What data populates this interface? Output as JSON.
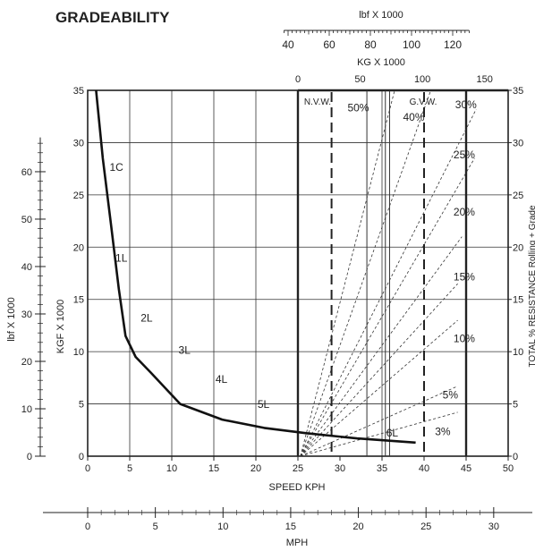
{
  "chart_data": {
    "type": "line",
    "title": "GRADEABILITY",
    "x_axis_primary": {
      "label": "SPEED KPH",
      "ticks": [
        "0",
        "5",
        "10",
        "15",
        "20",
        "25",
        "30",
        "35",
        "40",
        "45",
        "50"
      ],
      "range": [
        0,
        50
      ]
    },
    "x_axis_mph": {
      "label": "MPH",
      "ticks": [
        "0",
        "5",
        "10",
        "15",
        "20",
        "25",
        "30"
      ]
    },
    "y_axis_kgf": {
      "label": "KGF X 1000",
      "ticks": [
        "0",
        "5",
        "10",
        "15",
        "20",
        "25",
        "30",
        "35"
      ],
      "range": [
        0,
        35
      ]
    },
    "y_axis_lbf": {
      "label": "lbf X 1000",
      "ticks": [
        "0",
        "10",
        "20",
        "30",
        "40",
        "50",
        "60"
      ]
    },
    "y_axis_right": {
      "label": "TOTAL % RESISTANCE Rolling + Grade",
      "ticks": [
        "0",
        "5",
        "10",
        "15",
        "20",
        "25",
        "30",
        "35"
      ]
    },
    "top_axis_kg": {
      "label": "KG X 1000",
      "ticks": [
        "0",
        "50",
        "100",
        "150"
      ]
    },
    "top_axis_lbf": {
      "label": "lbf X 1000",
      "ticks": [
        "40",
        "60",
        "80",
        "100",
        "120"
      ]
    },
    "weight_markers": [
      {
        "label": "N.V.W.",
        "x": 29
      },
      {
        "label": "G.V.W.",
        "x": 40
      }
    ],
    "grade_lines": [
      {
        "label": "50%",
        "pct": 50
      },
      {
        "label": "40%",
        "pct": 40
      },
      {
        "label": "30%",
        "pct": 30
      },
      {
        "label": "25%",
        "pct": 25
      },
      {
        "label": "20%",
        "pct": 20
      },
      {
        "label": "15%",
        "pct": 15
      },
      {
        "label": "10%",
        "pct": 10
      },
      {
        "label": "5%",
        "pct": 5
      },
      {
        "label": "3%",
        "pct": 3
      }
    ],
    "series": [
      {
        "x": [
          1.0,
          1.8,
          2.8,
          3.7,
          4.5,
          5.7,
          7.5,
          11.0,
          16.0,
          21.0,
          26.0,
          32.0,
          39.0
        ],
        "y": [
          35,
          28.5,
          22,
          16,
          11.5,
          9.5,
          8.0,
          5.0,
          3.5,
          2.7,
          2.2,
          1.7,
          1.3
        ]
      }
    ],
    "gear_labels": [
      "1C",
      "1L",
      "2L",
      "3L",
      "4L",
      "5L",
      "6L"
    ]
  }
}
